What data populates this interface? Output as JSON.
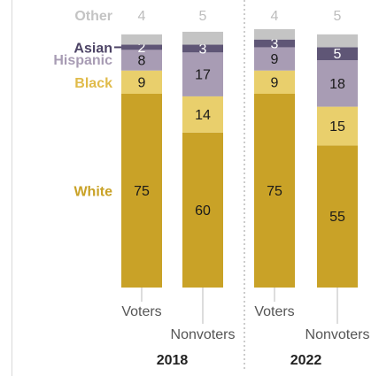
{
  "chart_data": {
    "type": "bar",
    "stacked": true,
    "normalized": true,
    "ylim": [
      0,
      100
    ],
    "grid": false,
    "legend": "left-labels",
    "groups": [
      {
        "label": "2018",
        "bars": [
          {
            "label": "Voters",
            "values": [
              75,
              9,
              8,
              2,
              4
            ]
          },
          {
            "label": "Nonvoters",
            "values": [
              60,
              14,
              17,
              3,
              5
            ]
          }
        ]
      },
      {
        "label": "2022",
        "bars": [
          {
            "label": "Voters",
            "values": [
              75,
              9,
              9,
              3,
              4
            ]
          },
          {
            "label": "Nonvoters",
            "values": [
              55,
              15,
              18,
              5,
              5
            ]
          }
        ]
      }
    ],
    "series": [
      {
        "name": "White",
        "color": "#c9a227"
      },
      {
        "name": "Black",
        "color": "#e9cf6c"
      },
      {
        "name": "Hispanic",
        "color": "#a89cb4"
      },
      {
        "name": "Asian",
        "color": "#5f5676"
      },
      {
        "name": "Other",
        "color": "#c4c4c4"
      }
    ],
    "label_colors": {
      "White": "#c9a227",
      "Black": "#e0bb4a",
      "Hispanic": "#a89cb4",
      "Asian": "#4d4466",
      "Other": "#c4c4c4",
      "value_dark": "#1a1a1a",
      "value_light": "#ffffff",
      "top_value": "#bdbdbd",
      "category": "#555555",
      "group": "#222222",
      "divider": "#999999"
    }
  }
}
